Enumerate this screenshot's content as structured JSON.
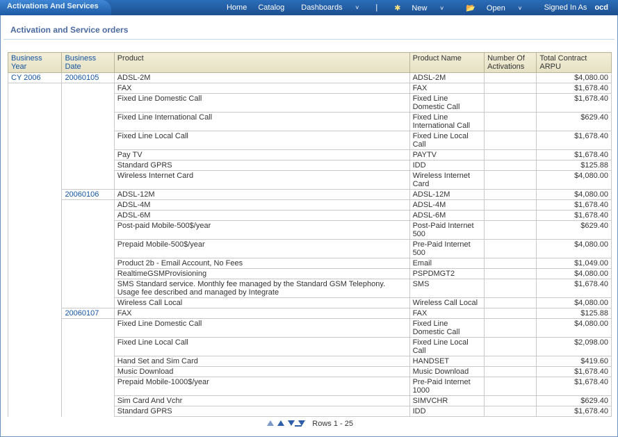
{
  "topbar": {
    "tab_title": "Activations And Services",
    "nav": {
      "home": "Home",
      "catalog": "Catalog",
      "dashboards": "Dashboards",
      "new": "New",
      "open": "Open",
      "signed_in_prefix": "Signed In As",
      "signed_in_user": "ocd"
    }
  },
  "page_title": "Activation and Service orders",
  "columns": {
    "year": "Business Year",
    "date": "Business Date",
    "product": "Product",
    "product_name": "Product Name",
    "activations": "Number Of Activations",
    "arpu": "Total Contract ARPU"
  },
  "rows": [
    {
      "year": "CY 2006",
      "date": "20060105",
      "product": "ADSL-2M",
      "name": "ADSL-2M",
      "act": "",
      "arpu": "$4,080.00"
    },
    {
      "year": "",
      "date": "",
      "product": "FAX",
      "name": "FAX",
      "act": "",
      "arpu": "$1,678.40"
    },
    {
      "year": "",
      "date": "",
      "product": "Fixed Line Domestic Call",
      "name": "Fixed Line Domestic Call",
      "act": "",
      "arpu": "$1,678.40"
    },
    {
      "year": "",
      "date": "",
      "product": "Fixed Line International Call",
      "name": "Fixed Line International Call",
      "act": "",
      "arpu": "$629.40"
    },
    {
      "year": "",
      "date": "",
      "product": "Fixed Line Local Call",
      "name": "Fixed Line Local Call",
      "act": "",
      "arpu": "$1,678.40"
    },
    {
      "year": "",
      "date": "",
      "product": "Pay TV",
      "name": "PAYTV",
      "act": "",
      "arpu": "$1,678.40"
    },
    {
      "year": "",
      "date": "",
      "product": "Standard GPRS",
      "name": "IDD",
      "act": "",
      "arpu": "$125.88"
    },
    {
      "year": "",
      "date": "",
      "product": "Wireless Internet Card",
      "name": "Wireless Internet Card",
      "act": "",
      "arpu": "$4,080.00"
    },
    {
      "year": "",
      "date": "20060106",
      "product": "ADSL-12M",
      "name": "ADSL-12M",
      "act": "",
      "arpu": "$4,080.00"
    },
    {
      "year": "",
      "date": "",
      "product": "ADSL-4M",
      "name": "ADSL-4M",
      "act": "",
      "arpu": "$1,678.40"
    },
    {
      "year": "",
      "date": "",
      "product": "ADSL-6M",
      "name": "ADSL-6M",
      "act": "",
      "arpu": "$1,678.40"
    },
    {
      "year": "",
      "date": "",
      "product": "Post-paid Mobile-500$/year",
      "name": "Post-Paid Internet 500",
      "act": "",
      "arpu": "$629.40"
    },
    {
      "year": "",
      "date": "",
      "product": "Prepaid Mobile-500$/year",
      "name": "Pre-Paid Internet 500",
      "act": "",
      "arpu": "$4,080.00"
    },
    {
      "year": "",
      "date": "",
      "product": "Product 2b - Email Account, No Fees",
      "name": "Email",
      "act": "",
      "arpu": "$1,049.00"
    },
    {
      "year": "",
      "date": "",
      "product": "RealtimeGSMProvisioning",
      "name": "PSPDMGT2",
      "act": "",
      "arpu": "$4,080.00"
    },
    {
      "year": "",
      "date": "",
      "product": "SMS Standard service. Monthly fee managed by the Standard GSM Telephony. Usage fee described and managed by Integrate",
      "name": "SMS",
      "act": "",
      "arpu": "$1,678.40"
    },
    {
      "year": "",
      "date": "",
      "product": "Wireless Call Local",
      "name": "Wireless Call Local",
      "act": "",
      "arpu": "$4,080.00"
    },
    {
      "year": "",
      "date": "20060107",
      "product": "FAX",
      "name": "FAX",
      "act": "",
      "arpu": "$125.88"
    },
    {
      "year": "",
      "date": "",
      "product": "Fixed Line Domestic Call",
      "name": "Fixed Line Domestic Call",
      "act": "",
      "arpu": "$4,080.00"
    },
    {
      "year": "",
      "date": "",
      "product": "Fixed Line Local Call",
      "name": "Fixed Line Local Call",
      "act": "",
      "arpu": "$2,098.00"
    },
    {
      "year": "",
      "date": "",
      "product": "Hand Set and Sim Card",
      "name": "HANDSET",
      "act": "",
      "arpu": "$419.60"
    },
    {
      "year": "",
      "date": "",
      "product": "Music Download",
      "name": "Music Download",
      "act": "",
      "arpu": "$1,678.40"
    },
    {
      "year": "",
      "date": "",
      "product": "Prepaid Mobile-1000$/year",
      "name": "Pre-Paid Internet 1000",
      "act": "",
      "arpu": "$1,678.40"
    },
    {
      "year": "",
      "date": "",
      "product": "Sim Card And Vchr",
      "name": "SIMVCHR",
      "act": "",
      "arpu": "$629.40"
    },
    {
      "year": "",
      "date": "",
      "product": "Standard GPRS",
      "name": "IDD",
      "act": "",
      "arpu": "$1,678.40"
    }
  ],
  "pager": {
    "label": "Rows 1 - 25"
  }
}
